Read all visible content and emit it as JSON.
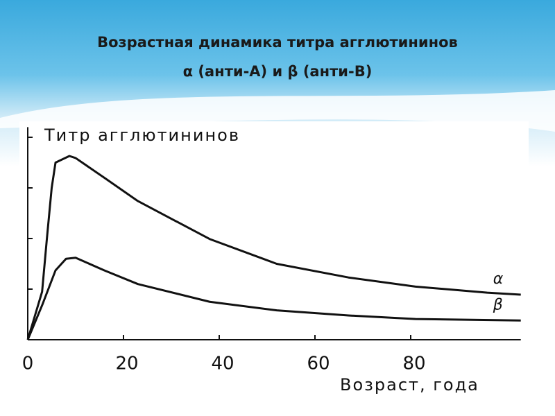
{
  "chart_data": {
    "type": "line",
    "title": "Возрастная динамика титра агглютининов",
    "subtitle": "α (анти-А) и β (анти-В)",
    "y_label": "Титр агглютининов",
    "x_label": "Возраст, года",
    "xlim": [
      0,
      103
    ],
    "xticks": [
      0,
      20,
      40,
      60,
      80
    ],
    "ylim": [
      0,
      4.2
    ],
    "yticks": [
      1,
      2,
      3,
      4
    ],
    "series": [
      {
        "name": "α",
        "color": "#111111",
        "x": [
          0,
          3,
          4,
          5,
          5.8,
          8.7,
          10,
          16,
          23,
          38,
          52,
          67,
          81,
          96,
          103
        ],
        "values": [
          0,
          0.95,
          2.0,
          3.0,
          3.5,
          3.63,
          3.59,
          3.2,
          2.74,
          1.99,
          1.5,
          1.23,
          1.05,
          0.93,
          0.89
        ]
      },
      {
        "name": "β",
        "color": "#111111",
        "x": [
          0,
          3,
          5.8,
          8,
          10,
          16,
          23,
          38,
          52,
          67,
          81,
          103
        ],
        "values": [
          0,
          0.68,
          1.37,
          1.6,
          1.62,
          1.37,
          1.1,
          0.75,
          0.58,
          0.48,
          0.41,
          0.38
        ]
      }
    ]
  }
}
